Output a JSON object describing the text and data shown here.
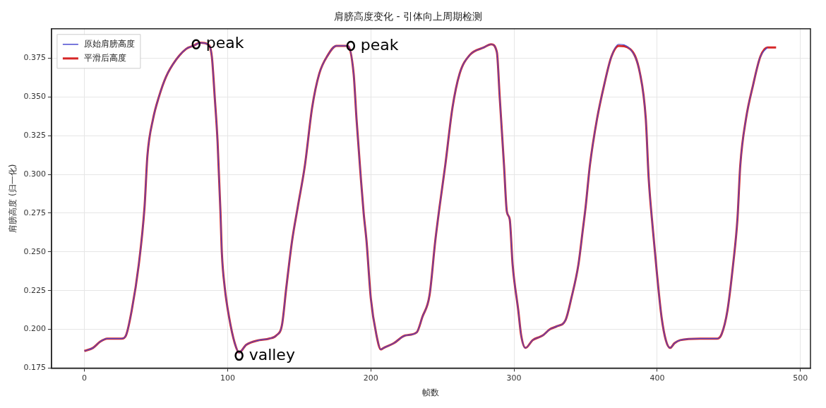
{
  "chart_data": {
    "type": "line",
    "title": "肩膀高度变化 - 引体向上周期检测",
    "xlabel": "帧数",
    "ylabel": "肩膀高度 (归一化)",
    "x": [
      0,
      6,
      11,
      16,
      26,
      29,
      33,
      38,
      42,
      44,
      48,
      52,
      57,
      64,
      71,
      76,
      81,
      86,
      89,
      91,
      93,
      95,
      96,
      98,
      101,
      105,
      108,
      113,
      122,
      129,
      134,
      138,
      141,
      145,
      149,
      154,
      159,
      164,
      170,
      176,
      184,
      188,
      190,
      193,
      195,
      197,
      200,
      204,
      207,
      209,
      216,
      224,
      232,
      236,
      241,
      245,
      248,
      252,
      257,
      262,
      269,
      279,
      284,
      288,
      290,
      293,
      295,
      297,
      299,
      303,
      305,
      308,
      313,
      320,
      325,
      330,
      336,
      340,
      345,
      348,
      350,
      353,
      358,
      363,
      368,
      373,
      381,
      388,
      392,
      394,
      397,
      400,
      403,
      406,
      409,
      412,
      416,
      430,
      442,
      445,
      449,
      453,
      456,
      458,
      462,
      467,
      472,
      477,
      483
    ],
    "series": [
      {
        "name": "原始肩膀高度",
        "color": "#4b4bd0",
        "values": [
          0.186,
          0.188,
          0.192,
          0.194,
          0.194,
          0.196,
          0.212,
          0.242,
          0.279,
          0.312,
          0.336,
          0.35,
          0.363,
          0.374,
          0.381,
          0.383,
          0.385,
          0.384,
          0.376,
          0.35,
          0.321,
          0.276,
          0.249,
          0.227,
          0.208,
          0.191,
          0.185,
          0.19,
          0.193,
          0.194,
          0.196,
          0.203,
          0.227,
          0.257,
          0.279,
          0.306,
          0.343,
          0.365,
          0.377,
          0.383,
          0.383,
          0.365,
          0.336,
          0.298,
          0.275,
          0.257,
          0.22,
          0.196,
          0.187,
          0.188,
          0.191,
          0.196,
          0.198,
          0.208,
          0.222,
          0.257,
          0.279,
          0.306,
          0.343,
          0.365,
          0.377,
          0.382,
          0.384,
          0.379,
          0.35,
          0.306,
          0.276,
          0.271,
          0.242,
          0.212,
          0.196,
          0.188,
          0.193,
          0.196,
          0.2,
          0.202,
          0.206,
          0.22,
          0.242,
          0.264,
          0.279,
          0.306,
          0.336,
          0.358,
          0.376,
          0.384,
          0.381,
          0.365,
          0.336,
          0.298,
          0.264,
          0.234,
          0.208,
          0.193,
          0.188,
          0.191,
          0.193,
          0.194,
          0.194,
          0.197,
          0.212,
          0.242,
          0.271,
          0.306,
          0.336,
          0.358,
          0.376,
          0.382,
          null
        ]
      },
      {
        "name": "平滑后高度",
        "color": "#d62728",
        "values": [
          0.186,
          0.188,
          0.192,
          0.194,
          0.194,
          0.196,
          0.212,
          0.242,
          0.279,
          0.312,
          0.336,
          0.35,
          0.363,
          0.374,
          0.381,
          0.383,
          0.385,
          0.384,
          0.376,
          0.35,
          0.321,
          0.276,
          0.249,
          0.227,
          0.208,
          0.191,
          0.185,
          0.19,
          0.193,
          0.194,
          0.196,
          0.203,
          0.227,
          0.257,
          0.279,
          0.306,
          0.343,
          0.365,
          0.377,
          0.383,
          0.383,
          0.365,
          0.336,
          0.298,
          0.275,
          0.257,
          0.22,
          0.196,
          0.187,
          0.188,
          0.191,
          0.196,
          0.198,
          0.208,
          0.222,
          0.257,
          0.279,
          0.306,
          0.343,
          0.365,
          0.377,
          0.382,
          0.384,
          0.379,
          0.35,
          0.306,
          0.276,
          0.271,
          0.242,
          0.212,
          0.196,
          0.188,
          0.193,
          0.196,
          0.2,
          0.202,
          0.206,
          0.22,
          0.242,
          0.264,
          0.279,
          0.306,
          0.336,
          0.358,
          0.376,
          0.383,
          0.381,
          0.365,
          0.336,
          0.298,
          0.264,
          0.234,
          0.208,
          0.193,
          0.188,
          0.191,
          0.193,
          0.194,
          0.194,
          0.197,
          0.212,
          0.242,
          0.271,
          0.306,
          0.336,
          0.358,
          0.376,
          0.382,
          0.382
        ]
      }
    ],
    "xlim": [
      -23,
      507
    ],
    "ylim": [
      0.175,
      0.394
    ],
    "xticks": [
      0,
      100,
      200,
      300,
      400,
      500
    ],
    "yticks": [
      {
        "value": 0.175,
        "label": "0.175"
      },
      {
        "value": 0.2,
        "label": "0.200"
      },
      {
        "value": 0.225,
        "label": "0.225"
      },
      {
        "value": 0.25,
        "label": "0.250"
      },
      {
        "value": 0.275,
        "label": "0.275"
      },
      {
        "value": 0.3,
        "label": "0.300"
      },
      {
        "value": 0.325,
        "label": "0.325"
      },
      {
        "value": 0.35,
        "label": "0.350"
      },
      {
        "value": 0.375,
        "label": "0.375"
      }
    ],
    "grid": true,
    "legend": "top left",
    "marker": "none",
    "line_style": "solid",
    "annotations": [
      {
        "text": "peak",
        "x": 78,
        "y": 0.384
      },
      {
        "text": "peak",
        "x": 186,
        "y": 0.383
      },
      {
        "text": "valley",
        "x": 108,
        "y": 0.183
      }
    ]
  }
}
